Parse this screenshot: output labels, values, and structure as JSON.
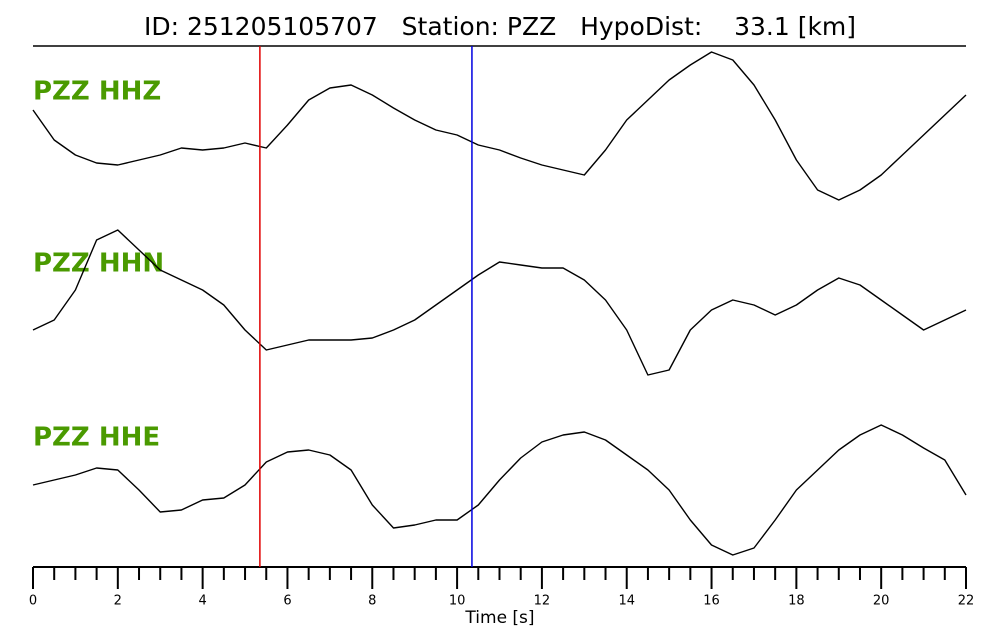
{
  "chart_data": {
    "type": "seismogram",
    "title": "ID: 251205105707   Station: PZZ   HypoDist:    33.1 [km]",
    "xlabel": "Time [s]",
    "xlim": [
      0,
      22
    ],
    "xticks": [
      0,
      2,
      4,
      6,
      8,
      10,
      12,
      14,
      16,
      18,
      20,
      22
    ],
    "xminorticks": [
      0.5,
      1,
      1.5,
      2.5,
      3,
      3.5,
      4.5,
      5,
      5.5,
      6.5,
      7,
      7.5,
      8.5,
      9,
      9.5,
      10.5,
      11,
      11.5,
      12.5,
      13,
      13.5,
      14.5,
      15,
      15.5,
      16.5,
      17,
      17.5,
      18.5,
      19,
      19.5,
      20.5,
      21,
      21.5
    ],
    "x": [
      0,
      0.5,
      1,
      1.5,
      2,
      2.5,
      3,
      3.5,
      4,
      4.5,
      5,
      5.5,
      6,
      6.5,
      7,
      7.5,
      8,
      8.5,
      9,
      9.5,
      10,
      10.5,
      11,
      11.5,
      12,
      12.5,
      13,
      13.5,
      14,
      14.5,
      15,
      15.5,
      16,
      16.5,
      17,
      17.5,
      18,
      18.5,
      19,
      19.5,
      20,
      20.5,
      21,
      21.5,
      22
    ],
    "label_color": "#4a9a00",
    "line_color": "#000000",
    "series": [
      {
        "name": "PZZ HHZ",
        "values": [
          0.4,
          -0.2,
          -0.5,
          -0.66,
          -0.7,
          -0.6,
          -0.5,
          -0.36,
          -0.4,
          -0.36,
          -0.26,
          -0.36,
          0.1,
          0.6,
          0.84,
          0.9,
          0.7,
          0.44,
          0.2,
          0,
          -0.1,
          -0.3,
          -0.4,
          -0.56,
          -0.7,
          -0.8,
          -0.9,
          -0.4,
          0.2,
          0.6,
          1.0,
          1.3,
          1.56,
          1.4,
          0.9,
          0.2,
          -0.6,
          -1.2,
          -1.4,
          -1.2,
          -0.9,
          -0.5,
          -0.1,
          0.3,
          0.7
        ]
      },
      {
        "name": "PZZ HHN",
        "values": [
          -0.6,
          -0.4,
          0.2,
          1.2,
          1.4,
          1.0,
          0.6,
          0.4,
          0.2,
          -0.1,
          -0.6,
          -1.0,
          -0.9,
          -0.8,
          -0.8,
          -0.8,
          -0.76,
          -0.6,
          -0.4,
          -0.1,
          0.2,
          0.5,
          0.76,
          0.7,
          0.64,
          0.64,
          0.4,
          0,
          -0.6,
          -1.5,
          -1.4,
          -0.6,
          -0.2,
          0,
          -0.1,
          -0.3,
          -0.1,
          0.2,
          0.44,
          0.3,
          0,
          -0.3,
          -0.6,
          -0.4,
          -0.2
        ]
      },
      {
        "name": "PZZ HHE",
        "values": [
          -0.1,
          0,
          0.1,
          0.24,
          0.2,
          -0.2,
          -0.64,
          -0.6,
          -0.4,
          -0.36,
          -0.1,
          0.36,
          0.56,
          0.6,
          0.5,
          0.2,
          -0.5,
          -0.96,
          -0.9,
          -0.8,
          -0.8,
          -0.5,
          0,
          0.44,
          0.76,
          0.9,
          0.96,
          0.8,
          0.5,
          0.2,
          -0.2,
          -0.8,
          -1.3,
          -1.5,
          -1.36,
          -0.8,
          -0.2,
          0.2,
          0.6,
          0.9,
          1.1,
          0.9,
          0.64,
          0.4,
          -0.3
        ]
      }
    ],
    "picks": [
      {
        "time": 5.35,
        "color": "#e00000"
      },
      {
        "time": 10.35,
        "color": "#0000e0"
      }
    ]
  }
}
